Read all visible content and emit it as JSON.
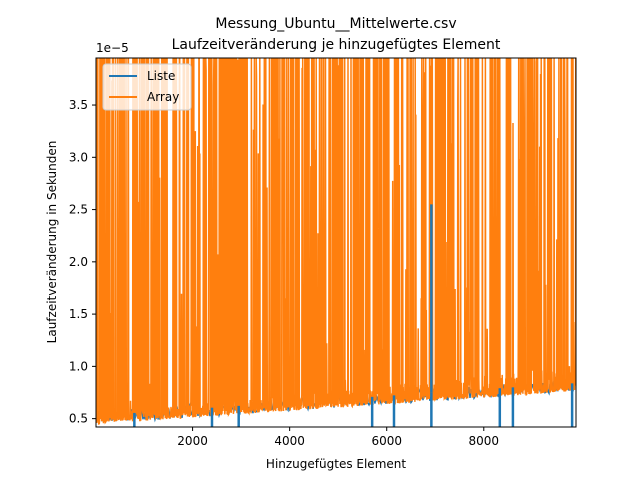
{
  "chart_data": {
    "type": "line",
    "title": "Messung_Ubuntu__Mittelwerte.csv",
    "subtitle": "Laufzeitveränderung je hinzugefügtes Element",
    "xlabel": "Hinzugefügtes Element",
    "ylabel": "Laufzeitveränderung in Sekunden",
    "y_offset_label": "1e−5",
    "xlim": [
      10,
      9900
    ],
    "ylim": [
      0.42,
      3.95
    ],
    "y_scale_factor": 1e-05,
    "xticks": [
      2000,
      4000,
      6000,
      8000
    ],
    "xtick_labels": [
      "2000",
      "4000",
      "6000",
      "8000"
    ],
    "yticks": [
      0.5,
      1.0,
      1.5,
      2.0,
      2.5,
      3.0,
      3.5
    ],
    "ytick_labels": [
      "0.5",
      "1.0",
      "1.5",
      "2.0",
      "2.5",
      "3.0",
      "3.5"
    ],
    "grid": false,
    "legend_position": "top-left",
    "series": [
      {
        "name": "Liste",
        "color": "#1f77b4",
        "baseline": {
          "start": 0.45,
          "end": 0.76
        },
        "spikes": [
          {
            "x": 800,
            "y": 0.42
          },
          {
            "x": 2400,
            "y": 0.42
          },
          {
            "x": 2950,
            "y": 0.42
          },
          {
            "x": 5700,
            "y": 0.42
          },
          {
            "x": 6150,
            "y": 0.42
          },
          {
            "x": 6920,
            "y": 2.55
          },
          {
            "x": 6920,
            "y": 0.42
          },
          {
            "x": 8330,
            "y": 0.42
          },
          {
            "x": 8600,
            "y": 0.42
          },
          {
            "x": 9820,
            "y": 0.42
          }
        ]
      },
      {
        "name": "Array",
        "color": "#ff7f0e",
        "baseline": {
          "start": 0.45,
          "end": 0.76
        },
        "band_top": {
          "start": 0.55,
          "end": 1.0
        },
        "peak": 3.95
      }
    ]
  }
}
